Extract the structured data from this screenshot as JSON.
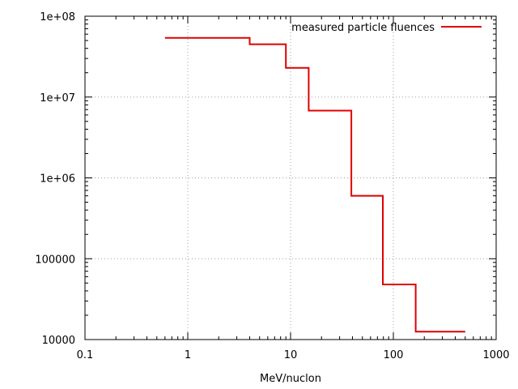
{
  "chart_data": {
    "type": "line",
    "title": "",
    "xlabel": "MeV/nuclon",
    "ylabel": "",
    "x_scale": "log",
    "y_scale": "log",
    "xlim": [
      0.1,
      1000
    ],
    "ylim": [
      10000,
      100000000
    ],
    "grid": true,
    "legend_position": "top-right",
    "x_ticks": [
      {
        "value": 0.1,
        "label": "0.1"
      },
      {
        "value": 1,
        "label": "1"
      },
      {
        "value": 10,
        "label": "10"
      },
      {
        "value": 100,
        "label": "100"
      },
      {
        "value": 1000,
        "label": "1000"
      }
    ],
    "y_ticks": [
      {
        "value": 10000,
        "label": "10000"
      },
      {
        "value": 100000,
        "label": "100000"
      },
      {
        "value": 1000000,
        "label": "1e+06"
      },
      {
        "value": 10000000,
        "label": "1e+07"
      },
      {
        "value": 100000000,
        "label": "1e+08"
      }
    ],
    "series": [
      {
        "name": "measured particle fluences",
        "color": "#e00000",
        "style": "histogram-steps",
        "steps": [
          {
            "x0": 0.6,
            "x1": 4,
            "y": 54000000
          },
          {
            "x0": 4,
            "x1": 9,
            "y": 45000000
          },
          {
            "x0": 9,
            "x1": 15,
            "y": 23000000
          },
          {
            "x0": 15,
            "x1": 39,
            "y": 6800000
          },
          {
            "x0": 39,
            "x1": 79,
            "y": 600000
          },
          {
            "x0": 79,
            "x1": 165,
            "y": 48000
          },
          {
            "x0": 165,
            "x1": 500,
            "y": 12500
          }
        ]
      }
    ]
  }
}
